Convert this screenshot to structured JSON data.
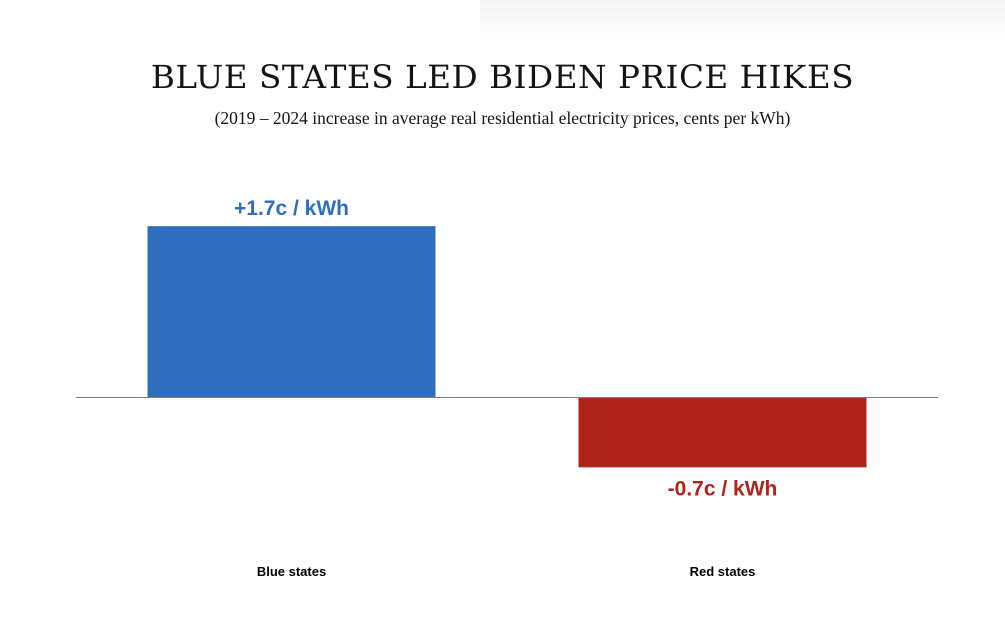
{
  "chart_data": {
    "type": "bar",
    "title": "BLUE STATES LED BIDEN PRICE HIKES",
    "subtitle": "(2019 – 2024 increase in average real residential electricity prices, cents per kWh)",
    "xlabel": "",
    "ylabel": "",
    "categories": [
      "Blue states",
      "Red states"
    ],
    "values": [
      1.7,
      -0.7
    ],
    "data_labels": [
      "+1.7c  / kWh",
      "-0.7c  / kWh"
    ],
    "colors": [
      "#2f6ebe",
      "#b02318"
    ],
    "units": "cents per kWh",
    "ylim": [
      -1.1,
      2.8
    ],
    "grid": false,
    "legend": "none",
    "baseline": 0,
    "baseline_color": "#7f7f7f"
  }
}
